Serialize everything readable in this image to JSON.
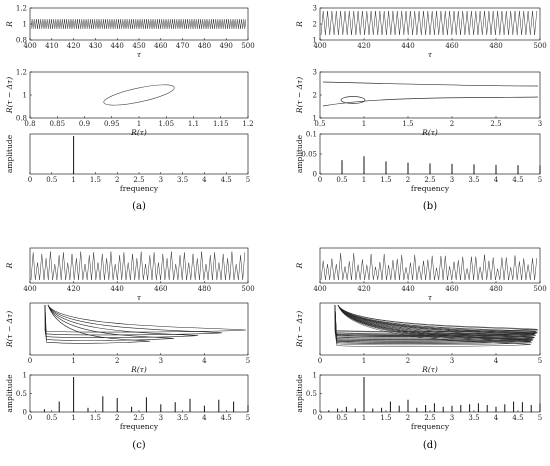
{
  "panels": [
    {
      "label": "(a)",
      "time_series": {
        "ylabel": "R",
        "xlabel": "τ",
        "x_ticks": [
          "400",
          "410",
          "420",
          "430",
          "440",
          "450",
          "460",
          "470",
          "480",
          "490",
          "500"
        ],
        "y_ticks": [
          "0.8",
          "1",
          "1.2"
        ]
      },
      "phase": {
        "ylabel": "R(τ − Δτ)",
        "xlabel": "R(τ)",
        "x_ticks": [
          "0.8",
          "0.85",
          "0.9",
          "0.95",
          "1",
          "1.05",
          "1.1",
          "1.15",
          "1.2"
        ],
        "y_ticks": [
          "0.8",
          "1",
          "1.2"
        ]
      },
      "spectrum": {
        "ylabel": "amplitude",
        "xlabel": "frequency",
        "x_ticks": [
          "0",
          "0.5",
          "1",
          "1.5",
          "2",
          "2.5",
          "3",
          "3.5",
          "4",
          "4.5",
          "5"
        ],
        "y_ticks": []
      }
    },
    {
      "label": "(b)",
      "time_series": {
        "ylabel": "R",
        "xlabel": "τ",
        "x_ticks": [
          "400",
          "420",
          "440",
          "460",
          "480",
          "500"
        ],
        "y_ticks": [
          "1",
          "2",
          "3"
        ]
      },
      "phase": {
        "ylabel": "R(τ − Δτ)",
        "xlabel": "R(τ)",
        "x_ticks": [
          "0.5",
          "1",
          "1.5",
          "2",
          "2.5",
          "3"
        ],
        "y_ticks": [
          "1",
          "2",
          "3"
        ]
      },
      "spectrum": {
        "ylabel": "amplitude",
        "xlabel": "frequency",
        "x_ticks": [
          "0",
          "0.5",
          "1",
          "1.5",
          "2",
          "2.5",
          "3",
          "3.5",
          "4",
          "4.5",
          "5"
        ],
        "y_ticks": [
          "0",
          "0.05",
          "0.1"
        ]
      }
    },
    {
      "label": "(c)",
      "time_series": {
        "ylabel": "R",
        "xlabel": "τ",
        "x_ticks": [
          "400",
          "420",
          "440",
          "460",
          "480",
          "500"
        ],
        "y_ticks": []
      },
      "phase": {
        "ylabel": "R(τ − Δτ)",
        "xlabel": "R(τ)",
        "x_ticks": [
          "0",
          "1",
          "2",
          "3",
          "4",
          "5"
        ],
        "y_ticks": []
      },
      "spectrum": {
        "ylabel": "amplitude",
        "xlabel": "frequency",
        "x_ticks": [
          "0",
          "0.5",
          "1",
          "1.5",
          "2",
          "2.5",
          "3",
          "3.5",
          "4",
          "4.5",
          "5"
        ],
        "y_ticks": [
          "0",
          "0.5",
          "1"
        ]
      }
    },
    {
      "label": "(d)",
      "time_series": {
        "ylabel": "R",
        "xlabel": "τ",
        "x_ticks": [
          "400",
          "420",
          "440",
          "460",
          "480",
          "500"
        ],
        "y_ticks": []
      },
      "phase": {
        "ylabel": "R(τ − Δτ)",
        "xlabel": "R(τ)",
        "x_ticks": [
          "0",
          "1",
          "2",
          "3",
          "4",
          "5"
        ],
        "y_ticks": []
      },
      "spectrum": {
        "ylabel": "amplitude",
        "xlabel": "frequency",
        "x_ticks": [
          "0",
          "0.5",
          "1",
          "1.5",
          "2",
          "2.5",
          "3",
          "3.5",
          "4",
          "4.5",
          "5"
        ],
        "y_ticks": [
          "0",
          "0.5",
          "1"
        ]
      }
    }
  ],
  "chart_data": [
    {
      "panel": "(a)",
      "type": "line",
      "plot": "time_series",
      "xlabel": "τ",
      "ylabel": "R",
      "xlim": [
        400,
        500
      ],
      "ylim": [
        0.8,
        1.2
      ],
      "series": [
        {
          "description": "dense oscillation",
          "period": 1,
          "min": 0.92,
          "max": 1.08
        }
      ]
    },
    {
      "panel": "(a)",
      "type": "line",
      "plot": "phase",
      "xlabel": "R(τ)",
      "ylabel": "R(τ − Δτ)",
      "xlim": [
        0.8,
        1.2
      ],
      "ylim": [
        0.8,
        1.2
      ],
      "series": [
        {
          "description": "tilted ellipse",
          "x_range": [
            0.91,
            1.09
          ],
          "y_range": [
            0.93,
            1.07
          ]
        }
      ]
    },
    {
      "panel": "(a)",
      "type": "bar",
      "plot": "spectrum",
      "xlabel": "frequency",
      "ylabel": "amplitude",
      "xlim": [
        0,
        5
      ],
      "x": [
        1
      ],
      "values": [
        1.0
      ]
    },
    {
      "panel": "(b)",
      "type": "line",
      "plot": "time_series",
      "xlabel": "τ",
      "ylabel": "R",
      "xlim": [
        400,
        500
      ],
      "ylim": [
        0.5,
        3.2
      ],
      "series": [
        {
          "description": "periodic spikes",
          "period": 2,
          "min": 0.7,
          "max": 3.0
        }
      ]
    },
    {
      "panel": "(b)",
      "type": "line",
      "plot": "phase",
      "xlabel": "R(τ)",
      "ylabel": "R(τ − Δτ)",
      "xlim": [
        0.5,
        3
      ],
      "ylim": [
        0.5,
        3
      ],
      "series": [
        {
          "description": "limit cycle with small loop near (0.9, 0.9)"
        }
      ]
    },
    {
      "panel": "(b)",
      "type": "bar",
      "plot": "spectrum",
      "xlabel": "frequency",
      "ylabel": "amplitude",
      "xlim": [
        0,
        5
      ],
      "ylim": [
        0,
        0.15
      ],
      "x": [
        0.5,
        1,
        1.5,
        2,
        2.5,
        3,
        3.5,
        4,
        4.5,
        5
      ],
      "values": [
        0.055,
        0.07,
        0.05,
        0.045,
        0.042,
        0.04,
        0.038,
        0.036,
        0.035,
        0.034
      ]
    },
    {
      "panel": "(c)",
      "type": "line",
      "plot": "time_series",
      "xlabel": "τ",
      "ylabel": "R",
      "xlim": [
        400,
        500
      ],
      "series": [
        {
          "description": "spikes of varying height"
        }
      ]
    },
    {
      "panel": "(c)",
      "type": "line",
      "plot": "phase",
      "xlabel": "R(τ)",
      "ylabel": "R(τ − Δτ)",
      "xlim": [
        0,
        5
      ],
      "series": [
        {
          "description": "several nested loops"
        }
      ]
    },
    {
      "panel": "(c)",
      "type": "bar",
      "plot": "spectrum",
      "xlabel": "frequency",
      "ylabel": "amplitude",
      "xlim": [
        0,
        5
      ],
      "ylim": [
        0,
        1
      ],
      "x": [
        0.33,
        0.67,
        1,
        1.33,
        1.67,
        2,
        2.33,
        2.67,
        3,
        3.33,
        3.67,
        4,
        4.33,
        4.67,
        5
      ],
      "values": [
        0.08,
        0.3,
        1.0,
        0.12,
        0.45,
        0.4,
        0.15,
        0.42,
        0.22,
        0.28,
        0.38,
        0.18,
        0.35,
        0.3,
        0.2
      ]
    },
    {
      "panel": "(d)",
      "type": "line",
      "plot": "time_series",
      "xlabel": "τ",
      "ylabel": "R",
      "xlim": [
        400,
        500
      ],
      "series": [
        {
          "description": "irregular spikes"
        }
      ]
    },
    {
      "panel": "(d)",
      "type": "line",
      "plot": "phase",
      "xlabel": "R(τ)",
      "ylabel": "R(τ − Δτ)",
      "xlim": [
        0,
        5
      ],
      "series": [
        {
          "description": "dense band of trajectories"
        }
      ]
    },
    {
      "panel": "(d)",
      "type": "bar",
      "plot": "spectrum",
      "xlabel": "frequency",
      "ylabel": "amplitude",
      "xlim": [
        0,
        5
      ],
      "ylim": [
        0,
        1
      ],
      "x": [
        0.2,
        0.4,
        0.6,
        0.8,
        1,
        1.2,
        1.4,
        1.6,
        1.8,
        2,
        2.2,
        2.4,
        2.6,
        2.8,
        3,
        3.2,
        3.4,
        3.6,
        3.8,
        4,
        4.2,
        4.4,
        4.6,
        4.8,
        5
      ],
      "values": [
        0.05,
        0.1,
        0.15,
        0.1,
        1.0,
        0.1,
        0.12,
        0.3,
        0.18,
        0.35,
        0.12,
        0.2,
        0.25,
        0.15,
        0.18,
        0.2,
        0.22,
        0.25,
        0.2,
        0.15,
        0.22,
        0.3,
        0.28,
        0.2,
        0.25
      ]
    }
  ]
}
